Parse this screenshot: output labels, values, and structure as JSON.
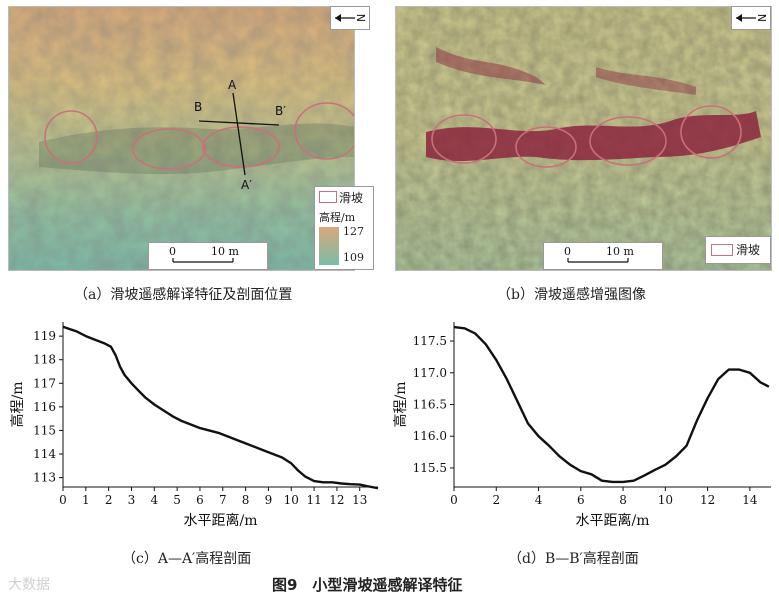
{
  "figure": {
    "caption": "图9　小型滑坡遥感解译特征",
    "watermark": "大数据"
  },
  "panel_a": {
    "caption": "（a）滑坡遥感解译特征及剖面位置",
    "labels": {
      "A": "A",
      "A_prime": "A′",
      "B": "B",
      "B_prime": "B′"
    },
    "north": "N",
    "scale": {
      "zero": "0",
      "ten": "10 m"
    },
    "legend": {
      "landslide": "滑坡",
      "elev_title": "高程/m",
      "max": "127",
      "min": "109"
    }
  },
  "panel_b": {
    "caption": "（b）滑坡遥感增强图像",
    "north": "N",
    "scale": {
      "zero": "0",
      "ten": "10 m"
    },
    "legend": {
      "landslide": "滑坡"
    }
  },
  "chart_data": [
    {
      "type": "line",
      "caption": "（c）A—A′高程剖面",
      "xlabel": "水平距离/m",
      "ylabel": "高程/m",
      "xlim": [
        0,
        13.8
      ],
      "ylim": [
        112.6,
        119.6
      ],
      "xticks": [
        0,
        1,
        2,
        3,
        4,
        5,
        6,
        7,
        8,
        9,
        10,
        11,
        12,
        13
      ],
      "yticks": [
        113,
        114,
        115,
        116,
        117,
        118,
        119
      ],
      "x": [
        0,
        0.3,
        0.6,
        1.0,
        1.4,
        1.8,
        2.1,
        2.3,
        2.5,
        2.7,
        3.0,
        3.3,
        3.6,
        4.0,
        4.4,
        4.8,
        5.2,
        5.6,
        6.0,
        6.4,
        6.8,
        7.2,
        7.6,
        8.0,
        8.4,
        8.8,
        9.2,
        9.6,
        10.0,
        10.3,
        10.6,
        11.0,
        11.4,
        11.8,
        12.2,
        12.6,
        13.0,
        13.4,
        13.8
      ],
      "y": [
        119.4,
        119.3,
        119.2,
        119.0,
        118.85,
        118.7,
        118.55,
        118.2,
        117.7,
        117.35,
        117.0,
        116.7,
        116.4,
        116.1,
        115.85,
        115.6,
        115.4,
        115.25,
        115.1,
        115.0,
        114.9,
        114.75,
        114.6,
        114.45,
        114.3,
        114.15,
        114.0,
        113.85,
        113.6,
        113.3,
        113.05,
        112.85,
        112.8,
        112.8,
        112.75,
        112.72,
        112.7,
        112.62,
        112.55
      ]
    },
    {
      "type": "line",
      "caption": "（d）B—B′高程剖面",
      "xlabel": "水平距离/m",
      "ylabel": "高程/m",
      "xlim": [
        0,
        15
      ],
      "ylim": [
        115.2,
        117.8
      ],
      "xticks": [
        0,
        2,
        4,
        6,
        8,
        10,
        12,
        14
      ],
      "yticks": [
        115.5,
        116.0,
        116.5,
        117.0,
        117.5
      ],
      "x": [
        0,
        0.5,
        1.0,
        1.5,
        2.0,
        2.5,
        3.0,
        3.5,
        4.0,
        4.5,
        5.0,
        5.5,
        6.0,
        6.5,
        7.0,
        7.5,
        8.0,
        8.5,
        9.0,
        9.5,
        10.0,
        10.5,
        11.0,
        11.5,
        12.0,
        12.5,
        13.0,
        13.5,
        14.0,
        14.5,
        14.9
      ],
      "y": [
        117.72,
        117.7,
        117.62,
        117.45,
        117.2,
        116.9,
        116.55,
        116.2,
        116.0,
        115.85,
        115.68,
        115.55,
        115.45,
        115.4,
        115.3,
        115.28,
        115.28,
        115.3,
        115.38,
        115.47,
        115.55,
        115.68,
        115.85,
        116.25,
        116.6,
        116.9,
        117.05,
        117.05,
        117.0,
        116.85,
        116.78
      ]
    }
  ]
}
